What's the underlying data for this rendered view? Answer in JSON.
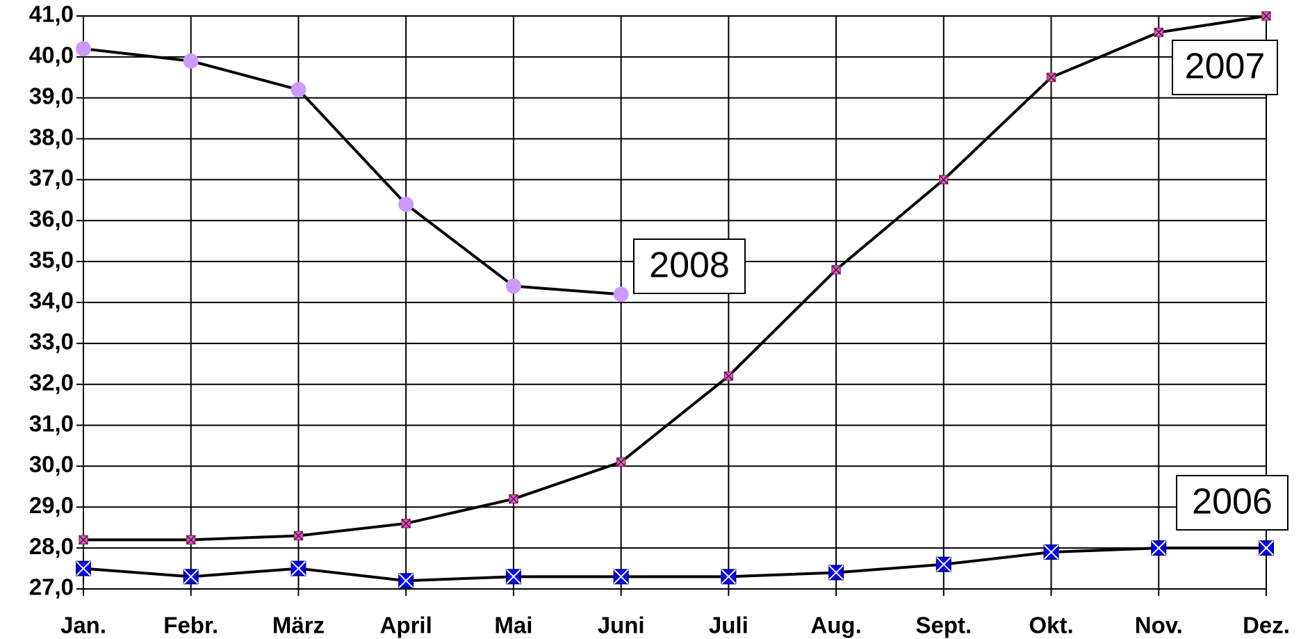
{
  "chart_data": {
    "type": "line",
    "categories": [
      "Jan.",
      "Febr.",
      "März",
      "April",
      "Mai",
      "Juni",
      "Juli",
      "Aug.",
      "Sept.",
      "Okt.",
      "Nov.",
      "Dez."
    ],
    "series": [
      {
        "name": "2006",
        "color": "#0000ff",
        "marker": "square-x",
        "values": [
          27.5,
          27.3,
          27.5,
          27.2,
          27.3,
          27.3,
          27.3,
          27.4,
          27.6,
          27.9,
          28.0,
          28.0
        ]
      },
      {
        "name": "2007",
        "color": "#cc66cc",
        "marker": "x",
        "values": [
          28.2,
          28.2,
          28.3,
          28.6,
          29.2,
          30.1,
          32.2,
          34.8,
          37.0,
          39.5,
          40.6,
          41.0
        ]
      },
      {
        "name": "2008",
        "color": "#cc99ff",
        "marker": "circle",
        "values": [
          40.2,
          39.9,
          39.2,
          36.4,
          34.4,
          34.2,
          null,
          null,
          null,
          null,
          null,
          null
        ]
      }
    ],
    "ylim": [
      27,
      41
    ],
    "yticks": [
      {
        "value": 27,
        "label": "27,0"
      },
      {
        "value": 28,
        "label": "28,0"
      },
      {
        "value": 29,
        "label": "29,0"
      },
      {
        "value": 30,
        "label": "30,0"
      },
      {
        "value": 31,
        "label": "31,0"
      },
      {
        "value": 32,
        "label": "32,0"
      },
      {
        "value": 33,
        "label": "33,0"
      },
      {
        "value": 34,
        "label": "34,0"
      },
      {
        "value": 35,
        "label": "35,0"
      },
      {
        "value": 36,
        "label": "36,0"
      },
      {
        "value": 37,
        "label": "37,0"
      },
      {
        "value": 38,
        "label": "38,0"
      },
      {
        "value": 39,
        "label": "39,0"
      },
      {
        "value": 40,
        "label": "40,0"
      },
      {
        "value": 41,
        "label": "41,0"
      }
    ],
    "grid": true
  }
}
